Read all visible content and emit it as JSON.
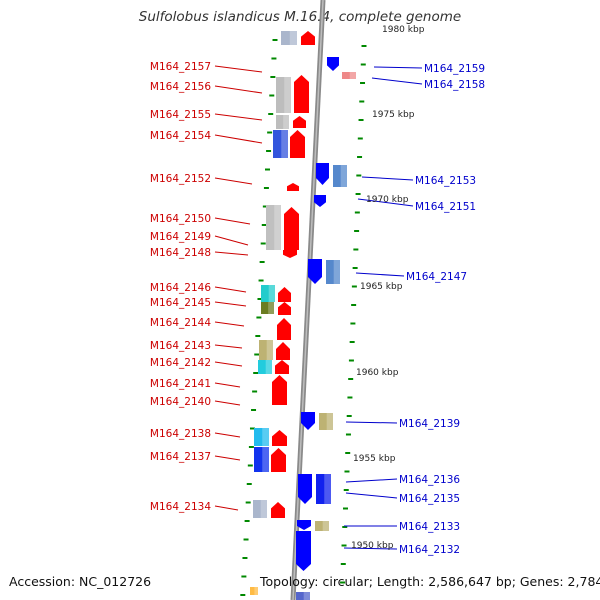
{
  "title": "Sulfolobus islandicus M.16.4, complete genome",
  "accession": "Accession: NC_012726",
  "topology": "Topology: circular; Length: 2,586,647 bp; Genes: 2,784",
  "colors": {
    "left_label": "#cc0000",
    "right_label": "#0000cc",
    "forward_gene": "#ff0000",
    "reverse_gene": "#0000ff",
    "backbone": "#888888",
    "tick": "#008800"
  },
  "position_labels": [
    "1980 kbp",
    "1975 kbp",
    "1970 kbp",
    "1965 kbp",
    "1960 kbp",
    "1955 kbp",
    "1950 kbp"
  ],
  "left_genes": [
    "M164_2157",
    "M164_2156",
    "M164_2155",
    "M164_2154",
    "M164_2152",
    "M164_2150",
    "M164_2149",
    "M164_2148",
    "M164_2146",
    "M164_2145",
    "M164_2144",
    "M164_2143",
    "M164_2142",
    "M164_2141",
    "M164_2140",
    "M164_2138",
    "M164_2137",
    "M164_2134"
  ],
  "right_genes": [
    "M164_2159",
    "M164_2158",
    "M164_2153",
    "M164_2151",
    "M164_2147",
    "M164_2139",
    "M164_2136",
    "M164_2135",
    "M164_2133",
    "M164_2132"
  ]
}
